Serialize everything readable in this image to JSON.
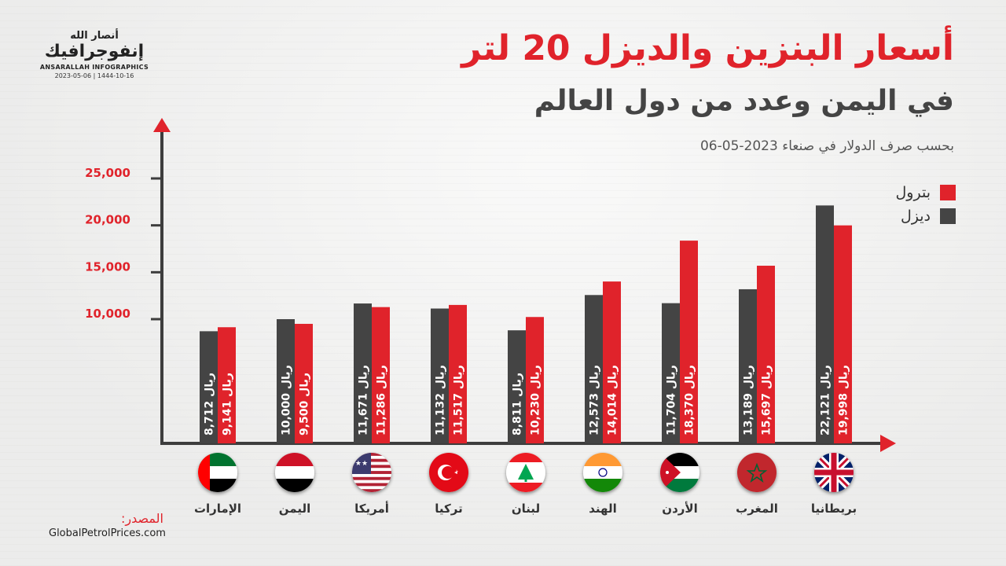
{
  "header": {
    "title": "أسعار البنزين والديزل 20 لتر",
    "subtitle": "في اليمن وعدد من دول العالم",
    "note": "بحسب صرف الدولار في صنعاء 2023-05-06"
  },
  "logo": {
    "line1": "أنصار الله",
    "line2": "إنفوجرافيك",
    "line3": "ANSARALLAH INFOGRAPHICS",
    "line4": "2023-05-06 | 1444-10-16"
  },
  "source": {
    "label": "المصدر:",
    "value": "GlobalPetrolPrices.com"
  },
  "colors": {
    "petrol": "#e0232b",
    "diesel": "#444444",
    "axis": "#3d3d3d",
    "arrow": "#e0232b",
    "tick_text": "#e0232b"
  },
  "chart_data": {
    "type": "bar",
    "title": "أسعار البنزين والديزل 20 لتر",
    "ylim": [
      0,
      25000
    ],
    "yticks": [
      "10,000",
      "15,000",
      "20,000",
      "25,000"
    ],
    "ytick_values": [
      10000,
      15000,
      20000,
      25000
    ],
    "legend_position": "top-right",
    "unit_suffix": "ريال",
    "categories": [
      "الإمارات",
      "اليمن",
      "أمريكا",
      "تركيا",
      "لبنان",
      "الهند",
      "الأردن",
      "المغرب",
      "بريطانيا"
    ],
    "flags": [
      "uae",
      "yemen",
      "usa",
      "turkey",
      "lebanon",
      "india",
      "jordan",
      "morocco",
      "uk"
    ],
    "series": [
      {
        "name": "ديزل",
        "color": "#444444",
        "values": [
          8712,
          10000,
          11671,
          11132,
          8811,
          12573,
          11704,
          13189,
          22121
        ],
        "labels": [
          "8,712",
          "10,000",
          "11,671",
          "11,132",
          "8,811",
          "12,573",
          "11,704",
          "13,189",
          "22,121"
        ]
      },
      {
        "name": "بترول",
        "color": "#e0232b",
        "values": [
          9141,
          9500,
          11286,
          11517,
          10230,
          14014,
          18370,
          15697,
          19998
        ],
        "labels": [
          "9,141",
          "9,500",
          "11,286",
          "11,517",
          "10,230",
          "14,014",
          "18,370",
          "15,697",
          "19,998"
        ]
      }
    ]
  }
}
